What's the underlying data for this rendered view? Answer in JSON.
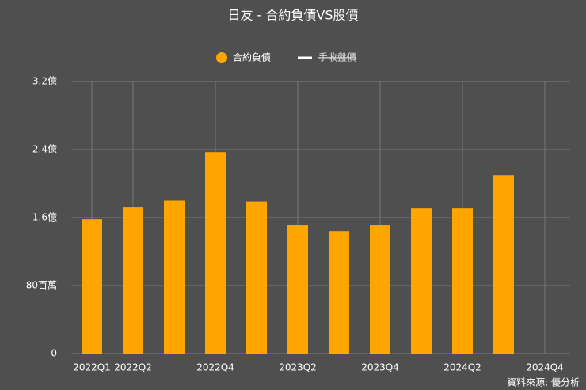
{
  "chart_data": {
    "type": "bar",
    "title": "日友 - 合約負債VS股價",
    "categories": [
      "2022Q1",
      "2022Q2",
      null,
      "2022Q4",
      null,
      "2023Q2",
      null,
      "2023Q4",
      null,
      "2024Q2",
      null,
      "2024Q4"
    ],
    "series": [
      {
        "name": "合約負債",
        "color": "#ffa500",
        "values": [
          1.58,
          1.72,
          1.8,
          2.37,
          1.79,
          1.51,
          1.44,
          1.51,
          1.71,
          1.71,
          2.1,
          null
        ]
      },
      {
        "name": "手收盤價",
        "color": "#ffffff",
        "hidden": true,
        "values": [
          null,
          null,
          null,
          null,
          null,
          null,
          null,
          null,
          null,
          null,
          null,
          null
        ]
      }
    ],
    "ylim": [
      0,
      3.2
    ],
    "yticks": [
      0,
      {
        "value": 0.8,
        "label": "80百萬"
      },
      {
        "value": 1.6,
        "label": "1.6億"
      },
      {
        "value": 2.4,
        "label": "2.4億"
      },
      {
        "value": 3.2,
        "label": "3.2億"
      }
    ],
    "grid": true,
    "legend": "top",
    "source": "資料來源: 優分析"
  }
}
